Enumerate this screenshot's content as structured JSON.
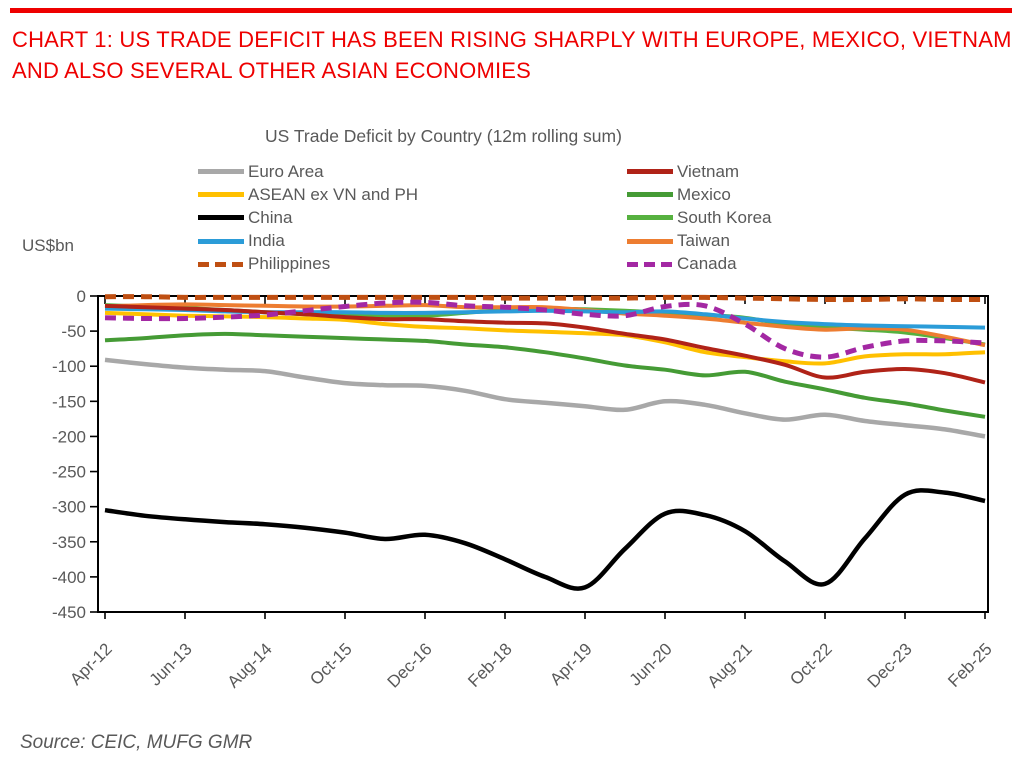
{
  "page": {
    "accent_red": "#EE0000",
    "text_gray": "#595959",
    "title": "CHART 1: US TRADE DEFICIT HAS BEEN RISING SHARPLY WITH EUROPE, MEXICO, VIETNAM AND ALSO SEVERAL OTHER ASIAN ECONOMIES",
    "source": "Source: CEIC, MUFG GMR"
  },
  "chart_data": {
    "type": "line",
    "title": "US Trade Deficit by Country (12m rolling sum)",
    "y_axis_label": "US$bn",
    "ylim": [
      0,
      -450
    ],
    "y_ticks": [
      0,
      -50,
      -100,
      -150,
      -200,
      -250,
      -300,
      -350,
      -400,
      -450
    ],
    "x_tick_labels": [
      "Apr-12",
      "Jun-13",
      "Aug-14",
      "Oct-15",
      "Dec-16",
      "Feb-18",
      "Apr-19",
      "Jun-20",
      "Aug-21",
      "Oct-22",
      "Dec-23",
      "Feb-25"
    ],
    "x_tick_months": [
      0,
      14,
      28,
      42,
      56,
      70,
      84,
      98,
      112,
      126,
      140,
      154
    ],
    "x_total_months": 154,
    "sample_months": [
      0,
      7,
      14,
      21,
      28,
      35,
      42,
      49,
      56,
      63,
      70,
      77,
      84,
      91,
      98,
      105,
      112,
      119,
      126,
      133,
      140,
      147,
      154
    ],
    "grid": false,
    "legend_position": "top-two-columns",
    "series": [
      {
        "name": "Euro Area",
        "color": "#A8A8A8",
        "dashed": false,
        "width": 4.5,
        "values": [
          -91,
          -97,
          -102,
          -105,
          -107,
          -116,
          -124,
          -127,
          -128,
          -135,
          -147,
          -152,
          -157,
          -162,
          -150,
          -155,
          -167,
          -176,
          -169,
          -178,
          -184,
          -190,
          -200
        ]
      },
      {
        "name": "ASEAN ex VN and PH",
        "color": "#FFC000",
        "dashed": false,
        "width": 4,
        "values": [
          -24,
          -26,
          -28,
          -29,
          -30,
          -32,
          -34,
          -40,
          -44,
          -46,
          -49,
          -51,
          -53,
          -56,
          -66,
          -80,
          -87,
          -93,
          -96,
          -86,
          -83,
          -83,
          -80
        ]
      },
      {
        "name": "China",
        "color": "#000000",
        "dashed": false,
        "width": 4.5,
        "values": [
          -305,
          -313,
          -318,
          -322,
          -325,
          -330,
          -337,
          -346,
          -340,
          -352,
          -375,
          -400,
          -415,
          -360,
          -310,
          -312,
          -335,
          -378,
          -410,
          -345,
          -283,
          -280,
          -292
        ]
      },
      {
        "name": "India",
        "color": "#2B9CD8",
        "dashed": false,
        "width": 4,
        "values": [
          -18,
          -19,
          -20,
          -22,
          -23,
          -23,
          -23,
          -24,
          -24,
          -23,
          -22,
          -21,
          -22,
          -23,
          -22,
          -26,
          -32,
          -37,
          -40,
          -42,
          -43,
          -44,
          -45
        ]
      },
      {
        "name": "Philippines",
        "color": "#BF4F12",
        "dashed": true,
        "width": 5,
        "values": [
          -1,
          -1,
          -2,
          -2,
          -2,
          -2,
          -2,
          -2,
          -2,
          -2,
          -3,
          -3,
          -3,
          -3,
          -2,
          -2,
          -3,
          -4,
          -5,
          -5,
          -4,
          -5,
          -5
        ]
      },
      {
        "name": "Vietnam",
        "color": "#B02318",
        "dashed": false,
        "width": 4,
        "values": [
          -14,
          -16,
          -18,
          -20,
          -23,
          -26,
          -30,
          -33,
          -33,
          -36,
          -38,
          -39,
          -45,
          -54,
          -62,
          -74,
          -85,
          -98,
          -116,
          -108,
          -104,
          -110,
          -123
        ]
      },
      {
        "name": "Mexico",
        "color": "#459B35",
        "dashed": false,
        "width": 4,
        "values": [
          -63,
          -60,
          -56,
          -54,
          -56,
          -58,
          -60,
          -62,
          -64,
          -69,
          -73,
          -80,
          -89,
          -99,
          -105,
          -113,
          -108,
          -122,
          -133,
          -145,
          -153,
          -163,
          -172
        ]
      },
      {
        "name": "South Korea",
        "color": "#56B13F",
        "dashed": false,
        "width": 4,
        "values": [
          -13,
          -15,
          -17,
          -20,
          -23,
          -26,
          -28,
          -28,
          -28,
          -24,
          -20,
          -18,
          -19,
          -21,
          -24,
          -27,
          -31,
          -40,
          -45,
          -48,
          -52,
          -60,
          -69
        ]
      },
      {
        "name": "Taiwan",
        "color": "#ED7D31",
        "dashed": false,
        "width": 4,
        "values": [
          -15,
          -13,
          -12,
          -13,
          -14,
          -15,
          -15,
          -14,
          -13,
          -16,
          -16,
          -16,
          -20,
          -25,
          -28,
          -32,
          -38,
          -44,
          -48,
          -46,
          -48,
          -58,
          -70
        ]
      },
      {
        "name": "Canada",
        "color": "#A328A3",
        "dashed": true,
        "width": 5,
        "values": [
          -31,
          -32,
          -32,
          -30,
          -27,
          -21,
          -15,
          -10,
          -9,
          -14,
          -16,
          -20,
          -26,
          -28,
          -15,
          -14,
          -40,
          -75,
          -87,
          -73,
          -64,
          -64,
          -67
        ]
      }
    ],
    "legend_columns": [
      [
        "Euro Area",
        "ASEAN ex VN and PH",
        "China",
        "India",
        "Philippines"
      ],
      [
        "Vietnam",
        "Mexico",
        "South Korea",
        "Taiwan",
        "Canada"
      ]
    ],
    "draw_order": [
      "Euro Area",
      "Mexico",
      "South Korea",
      "ASEAN ex VN and PH",
      "Taiwan",
      "India",
      "Vietnam",
      "China",
      "Philippines",
      "Canada"
    ]
  }
}
